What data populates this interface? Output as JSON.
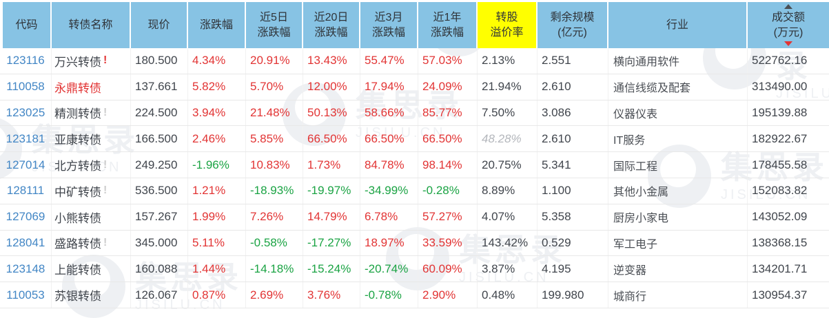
{
  "colors": {
    "header_bg": "#87c3e4",
    "header_text": "#2f3338",
    "highlight_column_bg": "#ffff00",
    "up_red": "#e23434",
    "down_green": "#1aa343",
    "code_link_blue": "#4286c5",
    "body_text": "#40454c",
    "muted_premium": "#b4b7bc"
  },
  "watermark": {
    "name": "集思录",
    "domain": "JISILU.CN"
  },
  "table": {
    "columns": [
      {
        "id": "code",
        "line1": "代码",
        "line2": ""
      },
      {
        "id": "name",
        "line1": "转债名称",
        "line2": ""
      },
      {
        "id": "price",
        "line1": "现价",
        "line2": ""
      },
      {
        "id": "chg",
        "line1": "涨跌幅",
        "line2": ""
      },
      {
        "id": "chg5d",
        "line1": "近5日",
        "line2": "涨跌幅"
      },
      {
        "id": "chg20d",
        "line1": "近20日",
        "line2": "涨跌幅"
      },
      {
        "id": "chg3m",
        "line1": "近3月",
        "line2": "涨跌幅"
      },
      {
        "id": "chg1y",
        "line1": "近1年",
        "line2": "涨跌幅"
      },
      {
        "id": "premium",
        "line1": "转股",
        "line2": "溢价率",
        "highlight": true
      },
      {
        "id": "scale",
        "line1": "剩余规模",
        "line2": "(亿元)"
      },
      {
        "id": "industry",
        "line1": "行业",
        "line2": ""
      },
      {
        "id": "turnover",
        "line1": "成交额",
        "line2": "(万元)",
        "sorted": "desc"
      }
    ],
    "rows": [
      {
        "code": "123116",
        "name": "万兴转债",
        "mark": "!",
        "mark_style": "alert",
        "name_style": "normal",
        "price": "180.500",
        "chg": "4.34%",
        "chg5d": "20.91%",
        "chg20d": "13.43%",
        "chg3m": "55.47%",
        "chg1y": "57.03%",
        "premium": "2.13%",
        "premium_style": "normal",
        "scale": "2.551",
        "industry": "横向通用软件",
        "turnover": "522762.16"
      },
      {
        "code": "110058",
        "name": "永鼎转债",
        "mark": "",
        "mark_style": "",
        "name_style": "red",
        "price": "137.661",
        "chg": "5.82%",
        "chg5d": "5.70%",
        "chg20d": "12.00%",
        "chg3m": "17.94%",
        "chg1y": "24.09%",
        "premium": "21.94%",
        "premium_style": "normal",
        "scale": "2.610",
        "industry": "通信线缆及配套",
        "turnover": "313490.00"
      },
      {
        "code": "123025",
        "name": "精测转债",
        "mark": "!",
        "mark_style": "info",
        "name_style": "normal",
        "price": "224.500",
        "chg": "3.94%",
        "chg5d": "21.48%",
        "chg20d": "50.13%",
        "chg3m": "58.66%",
        "chg1y": "85.77%",
        "premium": "7.50%",
        "premium_style": "normal",
        "scale": "3.086",
        "industry": "仪器仪表",
        "turnover": "195139.88"
      },
      {
        "code": "123181",
        "name": "亚康转债",
        "mark": "",
        "mark_style": "",
        "name_style": "normal",
        "price": "166.500",
        "chg": "2.46%",
        "chg5d": "5.85%",
        "chg20d": "66.50%",
        "chg3m": "66.50%",
        "chg1y": "66.50%",
        "premium": "48.28%",
        "premium_style": "muted",
        "scale": "2.610",
        "industry": "IT服务",
        "turnover": "182922.67"
      },
      {
        "code": "127014",
        "name": "北方转债",
        "mark": "!",
        "mark_style": "info",
        "name_style": "normal",
        "price": "249.250",
        "chg": "-1.96%",
        "chg5d": "10.83%",
        "chg20d": "1.73%",
        "chg3m": "84.78%",
        "chg1y": "98.14%",
        "premium": "20.75%",
        "premium_style": "normal",
        "scale": "5.341",
        "industry": "国际工程",
        "turnover": "178455.58"
      },
      {
        "code": "128111",
        "name": "中矿转债",
        "mark": "!",
        "mark_style": "info",
        "name_style": "normal",
        "price": "536.500",
        "chg": "1.21%",
        "chg5d": "-18.93%",
        "chg20d": "-19.97%",
        "chg3m": "-34.99%",
        "chg1y": "-0.28%",
        "premium": "8.89%",
        "premium_style": "normal",
        "scale": "1.100",
        "industry": "其他小金属",
        "turnover": "152083.82"
      },
      {
        "code": "127069",
        "name": "小熊转债",
        "mark": "",
        "mark_style": "",
        "name_style": "normal",
        "price": "157.267",
        "chg": "1.99%",
        "chg5d": "7.26%",
        "chg20d": "14.79%",
        "chg3m": "6.78%",
        "chg1y": "57.27%",
        "premium": "4.07%",
        "premium_style": "normal",
        "scale": "5.358",
        "industry": "厨房小家电",
        "turnover": "143052.09"
      },
      {
        "code": "128041",
        "name": "盛路转债",
        "mark": "!",
        "mark_style": "info",
        "name_style": "normal",
        "price": "345.000",
        "chg": "5.11%",
        "chg5d": "-0.58%",
        "chg20d": "-17.27%",
        "chg3m": "18.97%",
        "chg1y": "33.59%",
        "premium": "143.42%",
        "premium_style": "normal",
        "scale": "0.529",
        "industry": "军工电子",
        "turnover": "138368.15"
      },
      {
        "code": "123148",
        "name": "上能转债",
        "mark": "",
        "mark_style": "",
        "name_style": "normal",
        "price": "160.088",
        "chg": "1.44%",
        "chg5d": "-14.18%",
        "chg20d": "-15.24%",
        "chg3m": "-20.74%",
        "chg1y": "60.09%",
        "premium": "3.87%",
        "premium_style": "normal",
        "scale": "4.195",
        "industry": "逆变器",
        "turnover": "134201.71"
      },
      {
        "code": "110053",
        "name": "苏银转债",
        "mark": "",
        "mark_style": "",
        "name_style": "normal",
        "price": "126.067",
        "chg": "0.87%",
        "chg5d": "2.69%",
        "chg20d": "3.76%",
        "chg3m": "-0.78%",
        "chg1y": "2.90%",
        "premium": "0.48%",
        "premium_style": "normal",
        "scale": "199.980",
        "industry": "城商行",
        "turnover": "130954.37"
      }
    ]
  }
}
